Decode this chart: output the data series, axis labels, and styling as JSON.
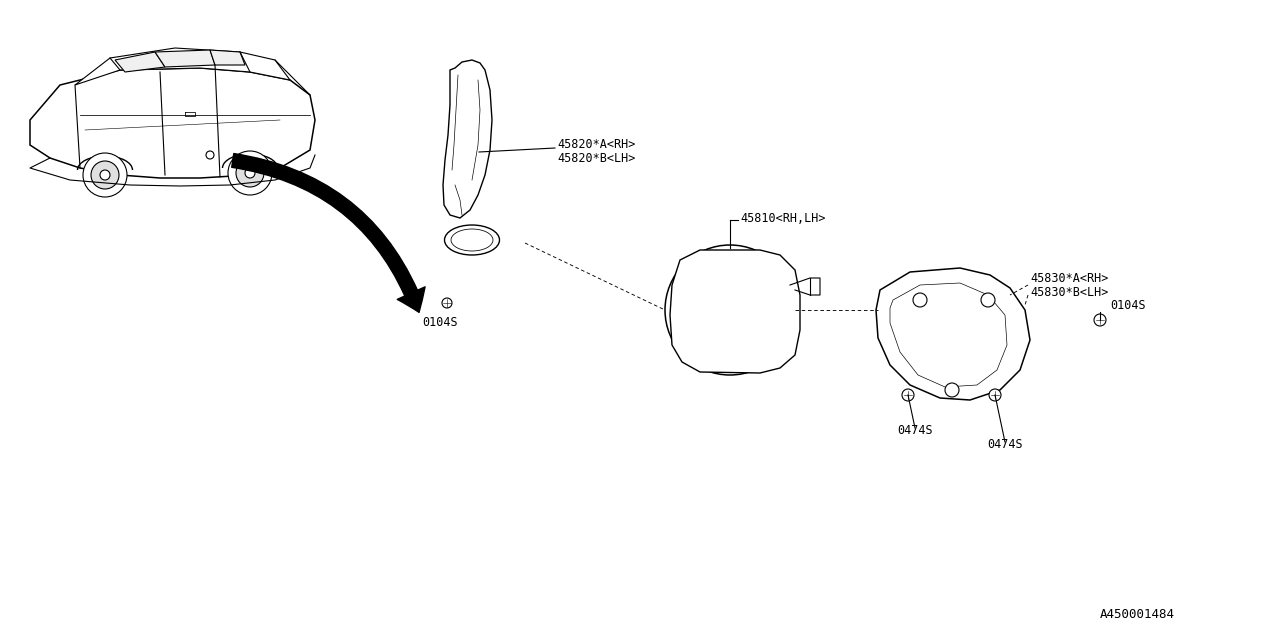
{
  "background_color": "#ffffff",
  "fig_width": 12.8,
  "fig_height": 6.4,
  "dpi": 100,
  "labels": {
    "part_45820A": "45820*A<RH>",
    "part_45820B": "45820*B<LH>",
    "part_45810": "45810<RH,LH>",
    "part_45830A": "45830*A<RH>",
    "part_45830B": "45830*B<LH>",
    "bolt_0104S_1": "0104S",
    "bolt_0104S_2": "0104S",
    "bolt_0474S_1": "0474S",
    "bolt_0474S_2": "0474S",
    "diagram_id": "A450001484"
  },
  "font_family": "monospace",
  "label_fontsize": 8.5,
  "diagram_id_fontsize": 9,
  "line_color": "#000000",
  "line_width": 0.8
}
